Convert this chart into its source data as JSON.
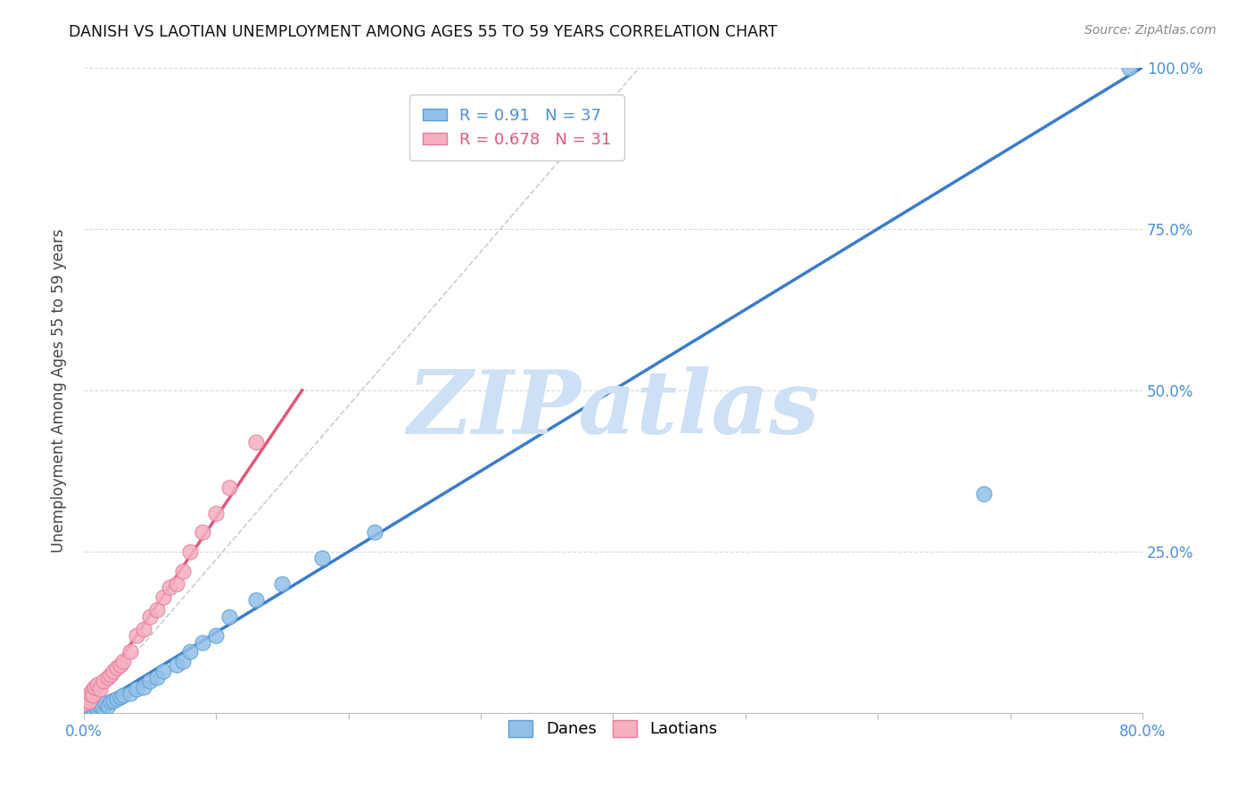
{
  "title": "DANISH VS LAOTIAN UNEMPLOYMENT AMONG AGES 55 TO 59 YEARS CORRELATION CHART",
  "source": "Source: ZipAtlas.com",
  "ylabel": "Unemployment Among Ages 55 to 59 years",
  "xlim": [
    0.0,
    0.8
  ],
  "ylim": [
    0.0,
    1.0
  ],
  "yticks": [
    0.0,
    0.25,
    0.5,
    0.75,
    1.0
  ],
  "ytick_labels_right": [
    "",
    "25.0%",
    "50.0%",
    "75.0%",
    "100.0%"
  ],
  "xticks": [
    0.0,
    0.1,
    0.2,
    0.3,
    0.4,
    0.5,
    0.6,
    0.7,
    0.8
  ],
  "background_color": "#ffffff",
  "grid_color": "#d0d0d0",
  "watermark_text": "ZIPatlas",
  "watermark_color": "#cde0f5",
  "danes_color": "#92c0e8",
  "danes_edge_color": "#5a9fd4",
  "laotians_color": "#f5b0c0",
  "laotians_edge_color": "#e87898",
  "danes_line_color": "#3a7cc9",
  "laotians_line_color": "#e05878",
  "danes_R": 0.91,
  "danes_N": 37,
  "laotians_R": 0.678,
  "laotians_N": 31,
  "danes_scatter_x": [
    0.001,
    0.002,
    0.003,
    0.004,
    0.005,
    0.006,
    0.007,
    0.008,
    0.009,
    0.01,
    0.012,
    0.014,
    0.016,
    0.018,
    0.02,
    0.022,
    0.025,
    0.028,
    0.03,
    0.035,
    0.04,
    0.045,
    0.05,
    0.055,
    0.06,
    0.07,
    0.075,
    0.08,
    0.09,
    0.1,
    0.11,
    0.13,
    0.15,
    0.18,
    0.22,
    0.68,
    0.79
  ],
  "danes_scatter_y": [
    0.002,
    0.004,
    0.003,
    0.005,
    0.006,
    0.004,
    0.008,
    0.005,
    0.01,
    0.008,
    0.012,
    0.01,
    0.015,
    0.012,
    0.018,
    0.02,
    0.022,
    0.025,
    0.028,
    0.03,
    0.038,
    0.04,
    0.05,
    0.055,
    0.065,
    0.075,
    0.08,
    0.095,
    0.11,
    0.12,
    0.15,
    0.175,
    0.2,
    0.24,
    0.28,
    0.34,
    1.0
  ],
  "laotians_scatter_x": [
    0.001,
    0.002,
    0.003,
    0.004,
    0.005,
    0.006,
    0.007,
    0.008,
    0.01,
    0.012,
    0.015,
    0.018,
    0.02,
    0.022,
    0.025,
    0.028,
    0.03,
    0.035,
    0.04,
    0.045,
    0.05,
    0.055,
    0.06,
    0.065,
    0.07,
    0.075,
    0.08,
    0.09,
    0.1,
    0.11,
    0.13
  ],
  "laotians_scatter_y": [
    0.015,
    0.02,
    0.025,
    0.018,
    0.03,
    0.035,
    0.028,
    0.04,
    0.045,
    0.038,
    0.05,
    0.055,
    0.06,
    0.065,
    0.07,
    0.075,
    0.08,
    0.095,
    0.12,
    0.13,
    0.15,
    0.16,
    0.18,
    0.195,
    0.2,
    0.22,
    0.25,
    0.28,
    0.31,
    0.35,
    0.42
  ],
  "danes_line_x": [
    0.0,
    0.8
  ],
  "danes_line_y": [
    0.0,
    1.0
  ],
  "laotians_line_x": [
    0.0,
    0.165
  ],
  "laotians_line_y": [
    0.0,
    0.5
  ],
  "ref_line_x": [
    0.0,
    0.42
  ],
  "ref_line_y": [
    0.0,
    1.0
  ]
}
